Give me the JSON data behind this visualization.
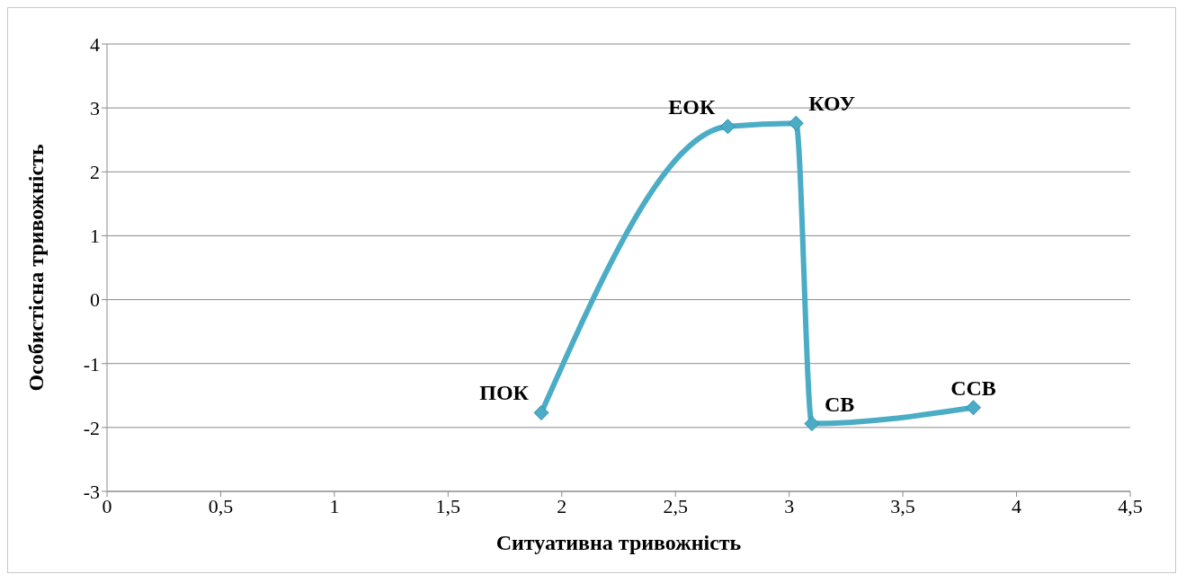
{
  "chart_data": {
    "type": "line",
    "xlabel": "Ситуативна тривожність",
    "ylabel": "Особистісна тривожність",
    "x": [
      1.91,
      2.73,
      3.03,
      3.1,
      3.81
    ],
    "series": [
      {
        "color": "#4bacc6",
        "values": [
          -1.77,
          2.71,
          2.76,
          -1.94,
          -1.69
        ]
      }
    ],
    "xlim": [
      0,
      4.5
    ],
    "xticks": [
      0,
      {
        "value": 0.5,
        "label": "0,5"
      },
      1,
      {
        "value": 1.5,
        "label": "1,5"
      },
      2,
      {
        "value": 2.5,
        "label": "2,5"
      },
      3,
      {
        "value": 3.5,
        "label": "3,5"
      },
      4,
      {
        "value": 4.5,
        "label": "4,5"
      }
    ],
    "ylim": [
      -3,
      4
    ],
    "yticks": [
      -3,
      -2,
      -1,
      0,
      1,
      2,
      3,
      4
    ],
    "grid": "y",
    "marker": "diamond",
    "line_style": "solid",
    "annotations": [
      {
        "text": "ПОК",
        "x": 1.91,
        "y": -1.77
      },
      {
        "text": "ЕОК",
        "x": 2.73,
        "y": 2.71
      },
      {
        "text": "КОУ",
        "x": 3.03,
        "y": 2.76
      },
      {
        "text": "СВ",
        "x": 3.1,
        "y": -1.94
      },
      {
        "text": "ССВ",
        "x": 3.81,
        "y": -1.69
      }
    ]
  }
}
